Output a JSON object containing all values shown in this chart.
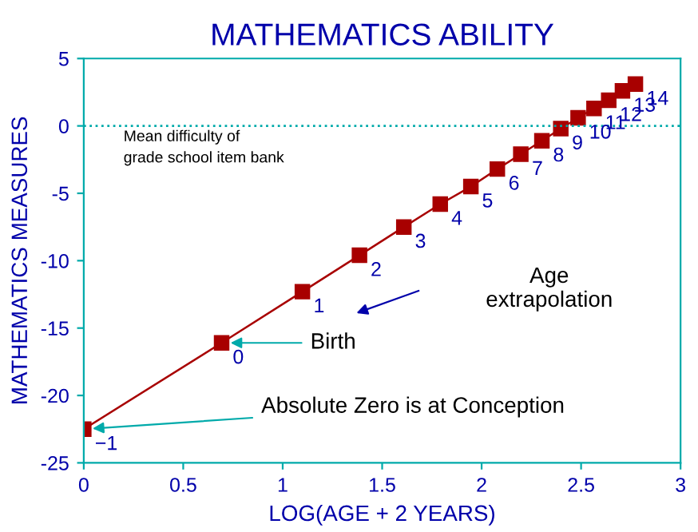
{
  "chart_data": {
    "type": "line",
    "title": "MATHEMATICS ABILITY",
    "xlabel": "LOG(AGE + 2 YEARS)",
    "ylabel": "MATHEMATICS MEASURES",
    "x": [
      0,
      0.693,
      1.099,
      1.386,
      1.609,
      1.792,
      1.946,
      2.079,
      2.197,
      2.303,
      2.398,
      2.485,
      2.565,
      2.639,
      2.708,
      2.773
    ],
    "series": [
      {
        "color": "#a80000",
        "values": [
          -22.5,
          -16.1,
          -12.3,
          -9.6,
          -7.5,
          -5.8,
          -4.5,
          -3.2,
          -2.1,
          -1.1,
          -0.2,
          0.6,
          1.3,
          1.9,
          2.6,
          3.1
        ]
      }
    ],
    "marker": "square",
    "line_style": "solid",
    "grid": false,
    "xlim": [
      0,
      3
    ],
    "xticks": [
      0,
      0.5,
      1,
      1.5,
      2,
      2.5,
      3
    ],
    "ylim": [
      -25,
      5
    ],
    "yticks": [
      -25,
      -20,
      -15,
      -10,
      -5,
      0,
      5
    ],
    "ref_lines": [
      {
        "axis": "y",
        "value": 0,
        "label": "Mean difficulty of\ngrade school item bank",
        "color": "#00aaaa",
        "line_style": "dotted"
      }
    ],
    "annotations": [
      {
        "text": "−1",
        "x": 0,
        "y": -22.5
      },
      {
        "text": "0",
        "x": 0.693,
        "y": -16.1
      },
      {
        "text": "1",
        "x": 1.099,
        "y": -12.3
      },
      {
        "text": "2",
        "x": 1.386,
        "y": -9.6
      },
      {
        "text": "3",
        "x": 1.609,
        "y": -7.5
      },
      {
        "text": "4",
        "x": 1.792,
        "y": -5.8
      },
      {
        "text": "5",
        "x": 1.946,
        "y": -4.5
      },
      {
        "text": "6",
        "x": 2.079,
        "y": -3.2
      },
      {
        "text": "7",
        "x": 2.197,
        "y": -2.1
      },
      {
        "text": "8",
        "x": 2.303,
        "y": -1.1
      },
      {
        "text": "9",
        "x": 2.398,
        "y": -0.2
      },
      {
        "text": "10",
        "x": 2.485,
        "y": 0.6
      },
      {
        "text": "11",
        "x": 2.565,
        "y": 1.3
      },
      {
        "text": "12",
        "x": 2.639,
        "y": 1.9
      },
      {
        "text": "13",
        "x": 2.708,
        "y": 2.6
      },
      {
        "text": "14",
        "x": 2.773,
        "y": 3.1
      },
      {
        "text": "Birth",
        "x": 0.693,
        "y": -16.1
      },
      {
        "text": "Absolute Zero is at Conception",
        "x": 0,
        "y": -22.5
      },
      "Age\nextrapolation"
    ]
  }
}
